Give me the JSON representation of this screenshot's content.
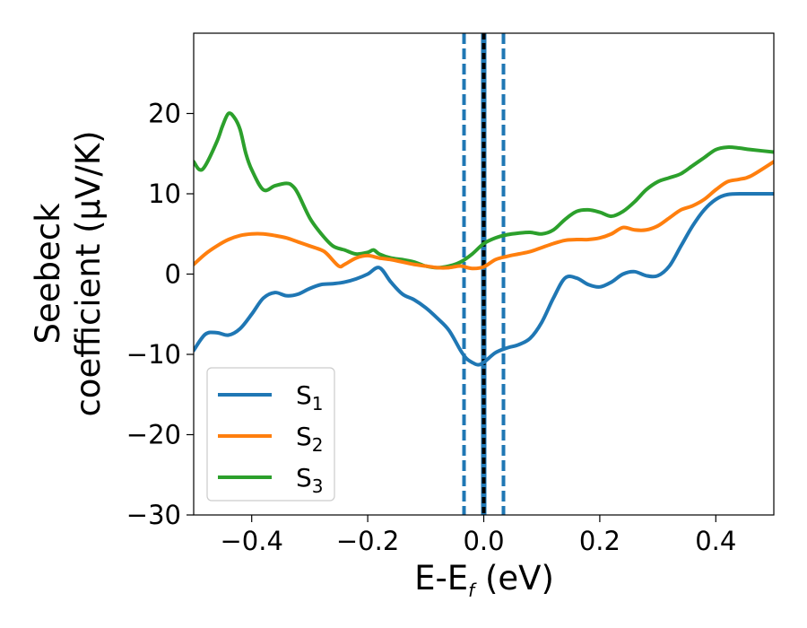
{
  "chart_data": {
    "type": "line",
    "xlabel": {
      "main": "E-E",
      "sub": "f",
      "unit": " (eV)"
    },
    "ylabel": {
      "line1": "Seebeck",
      "line2": "coefficient  (μV/K)"
    },
    "xlim": [
      -0.5,
      0.5
    ],
    "ylim": [
      -30,
      30
    ],
    "xticks": [
      -0.4,
      -0.2,
      0.0,
      0.2,
      0.4
    ],
    "xtick_labels": [
      "−0.4",
      "−0.2",
      "0.0",
      "0.2",
      "0.4"
    ],
    "yticks": [
      -30,
      -20,
      -10,
      0,
      10,
      20
    ],
    "ytick_labels": [
      "−30",
      "−20",
      "−10",
      "0",
      "10",
      "20"
    ],
    "grid": false,
    "legend_position": "lower-left",
    "vlines": [
      {
        "x": -0.034,
        "color": "#1f77b4",
        "style": "dashed"
      },
      {
        "x": 0.0,
        "color": "#1f77b4",
        "style": "solid"
      },
      {
        "x": 0.0,
        "color": "#000000",
        "style": "dashed"
      },
      {
        "x": 0.034,
        "color": "#1f77b4",
        "style": "dashed"
      }
    ],
    "series": [
      {
        "name": "S",
        "sub": "1",
        "color": "#1f77b4",
        "x": [
          -0.5,
          -0.48,
          -0.46,
          -0.44,
          -0.42,
          -0.4,
          -0.38,
          -0.36,
          -0.34,
          -0.32,
          -0.3,
          -0.28,
          -0.26,
          -0.24,
          -0.22,
          -0.2,
          -0.18,
          -0.16,
          -0.14,
          -0.12,
          -0.1,
          -0.08,
          -0.06,
          -0.04,
          -0.03,
          -0.02,
          -0.01,
          0.0,
          0.02,
          0.04,
          0.06,
          0.08,
          0.1,
          0.12,
          0.14,
          0.16,
          0.18,
          0.2,
          0.22,
          0.24,
          0.26,
          0.28,
          0.3,
          0.32,
          0.34,
          0.36,
          0.38,
          0.4,
          0.42,
          0.45,
          0.5
        ],
        "y": [
          -9.5,
          -7.5,
          -7.3,
          -7.6,
          -6.8,
          -5.0,
          -3.0,
          -2.3,
          -2.7,
          -2.5,
          -1.8,
          -1.3,
          -1.2,
          -1.0,
          -0.6,
          0.0,
          0.8,
          -1.0,
          -2.5,
          -3.2,
          -4.2,
          -5.5,
          -7.0,
          -9.5,
          -10.5,
          -11.0,
          -11.3,
          -11.0,
          -9.8,
          -9.2,
          -8.8,
          -8.0,
          -6.0,
          -3.0,
          -0.5,
          -0.5,
          -1.3,
          -1.6,
          -1.0,
          0.0,
          0.3,
          -0.2,
          -0.2,
          1.0,
          3.5,
          6.0,
          8.0,
          9.3,
          9.9,
          10.0,
          10.0
        ]
      },
      {
        "name": "S",
        "sub": "2",
        "color": "#ff7f0e",
        "x": [
          -0.5,
          -0.48,
          -0.46,
          -0.44,
          -0.42,
          -0.4,
          -0.38,
          -0.36,
          -0.34,
          -0.32,
          -0.3,
          -0.28,
          -0.27,
          -0.25,
          -0.24,
          -0.22,
          -0.2,
          -0.18,
          -0.16,
          -0.14,
          -0.12,
          -0.1,
          -0.08,
          -0.06,
          -0.04,
          -0.02,
          0.0,
          0.02,
          0.04,
          0.06,
          0.08,
          0.1,
          0.12,
          0.14,
          0.16,
          0.18,
          0.2,
          0.22,
          0.24,
          0.26,
          0.28,
          0.3,
          0.32,
          0.34,
          0.36,
          0.38,
          0.4,
          0.42,
          0.44,
          0.46,
          0.5
        ],
        "y": [
          1.2,
          2.5,
          3.5,
          4.3,
          4.8,
          5.0,
          5.0,
          4.8,
          4.5,
          4.0,
          3.5,
          3.0,
          2.5,
          1.0,
          1.2,
          2.0,
          2.3,
          2.0,
          1.8,
          1.5,
          1.2,
          1.0,
          0.8,
          0.8,
          1.0,
          0.7,
          0.9,
          1.8,
          2.2,
          2.5,
          2.8,
          3.3,
          3.8,
          4.2,
          4.3,
          4.3,
          4.5,
          5.0,
          5.8,
          5.5,
          5.5,
          6.0,
          7.0,
          8.0,
          8.5,
          9.3,
          10.5,
          11.5,
          11.8,
          12.2,
          14.0
        ]
      },
      {
        "name": "S",
        "sub": "3",
        "color": "#2ca02c",
        "x": [
          -0.5,
          -0.49,
          -0.48,
          -0.46,
          -0.45,
          -0.44,
          -0.43,
          -0.42,
          -0.41,
          -0.4,
          -0.38,
          -0.36,
          -0.34,
          -0.33,
          -0.32,
          -0.3,
          -0.28,
          -0.26,
          -0.24,
          -0.22,
          -0.2,
          -0.19,
          -0.18,
          -0.16,
          -0.14,
          -0.12,
          -0.1,
          -0.08,
          -0.06,
          -0.04,
          -0.02,
          0.0,
          0.02,
          0.04,
          0.06,
          0.08,
          0.1,
          0.12,
          0.14,
          0.16,
          0.18,
          0.2,
          0.22,
          0.24,
          0.26,
          0.28,
          0.3,
          0.32,
          0.34,
          0.36,
          0.38,
          0.4,
          0.42,
          0.44,
          0.46,
          0.5
        ],
        "y": [
          14.0,
          13.0,
          13.5,
          16.5,
          18.5,
          20.0,
          19.5,
          18.0,
          15.0,
          13.0,
          10.5,
          11.0,
          11.3,
          11.0,
          10.0,
          7.0,
          5.0,
          3.5,
          3.0,
          2.5,
          2.7,
          3.0,
          2.5,
          2.0,
          1.8,
          1.5,
          1.0,
          0.8,
          1.0,
          1.5,
          2.5,
          3.8,
          4.5,
          4.9,
          5.1,
          5.2,
          5.0,
          5.5,
          6.8,
          7.8,
          8.0,
          7.7,
          7.2,
          7.8,
          9.0,
          10.5,
          11.5,
          12.0,
          12.5,
          13.5,
          14.5,
          15.5,
          15.8,
          15.7,
          15.5,
          15.2
        ]
      }
    ]
  }
}
